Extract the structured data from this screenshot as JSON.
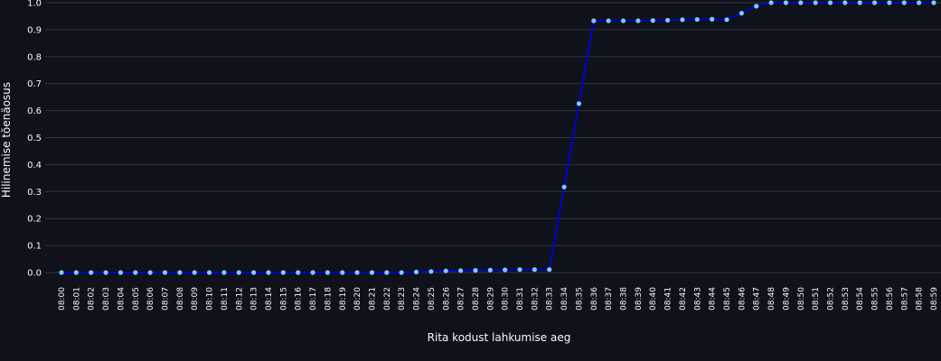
{
  "chart_data": {
    "type": "line",
    "title": "",
    "xlabel": "Rita kodust lahkumise aeg",
    "ylabel": "Hilinemise tõenäosus",
    "ylim": [
      0,
      1.0
    ],
    "yticks": [
      "0.0",
      "0.1",
      "0.2",
      "0.3",
      "0.4",
      "0.5",
      "0.6",
      "0.7",
      "0.8",
      "0.9",
      "1.0"
    ],
    "grid": true,
    "colors": {
      "line": "#0000cc",
      "marker": "#83c9ff",
      "background": "#0f121a",
      "grid": "#31333f",
      "text": "#fafafa"
    },
    "x": [
      "08:00",
      "08:01",
      "08:02",
      "08:03",
      "08:04",
      "08:05",
      "08:06",
      "08:07",
      "08:08",
      "08:09",
      "08:10",
      "08:11",
      "08:12",
      "08:13",
      "08:14",
      "08:15",
      "08:16",
      "08:17",
      "08:18",
      "08:19",
      "08:20",
      "08:21",
      "08:22",
      "08:23",
      "08:24",
      "08:25",
      "08:26",
      "08:27",
      "08:28",
      "08:29",
      "08:30",
      "08:31",
      "08:32",
      "08:33",
      "08:34",
      "08:35",
      "08:36",
      "08:37",
      "08:38",
      "08:39",
      "08:40",
      "08:41",
      "08:42",
      "08:43",
      "08:44",
      "08:45",
      "08:46",
      "08:47",
      "08:48",
      "08:49",
      "08:50",
      "08:51",
      "08:52",
      "08:53",
      "08:54",
      "08:55",
      "08:56",
      "08:57",
      "08:58",
      "08:59"
    ],
    "values": [
      0.0,
      0.0,
      0.0,
      0.0,
      0.0,
      0.0,
      0.0,
      0.0,
      0.0,
      0.0,
      0.0,
      0.0,
      0.0,
      0.0,
      0.0,
      0.0,
      0.0,
      0.0,
      0.0,
      0.0,
      0.0,
      0.0,
      0.0,
      0.0,
      0.002,
      0.004,
      0.006,
      0.007,
      0.008,
      0.009,
      0.01,
      0.011,
      0.011,
      0.011,
      0.317,
      0.626,
      0.933,
      0.933,
      0.933,
      0.933,
      0.934,
      0.935,
      0.937,
      0.938,
      0.939,
      0.937,
      0.961,
      0.987,
      1.0,
      1.0,
      1.0,
      1.0,
      1.0,
      1.0,
      1.0,
      1.0,
      1.0,
      1.0,
      1.0,
      1.0
    ]
  }
}
